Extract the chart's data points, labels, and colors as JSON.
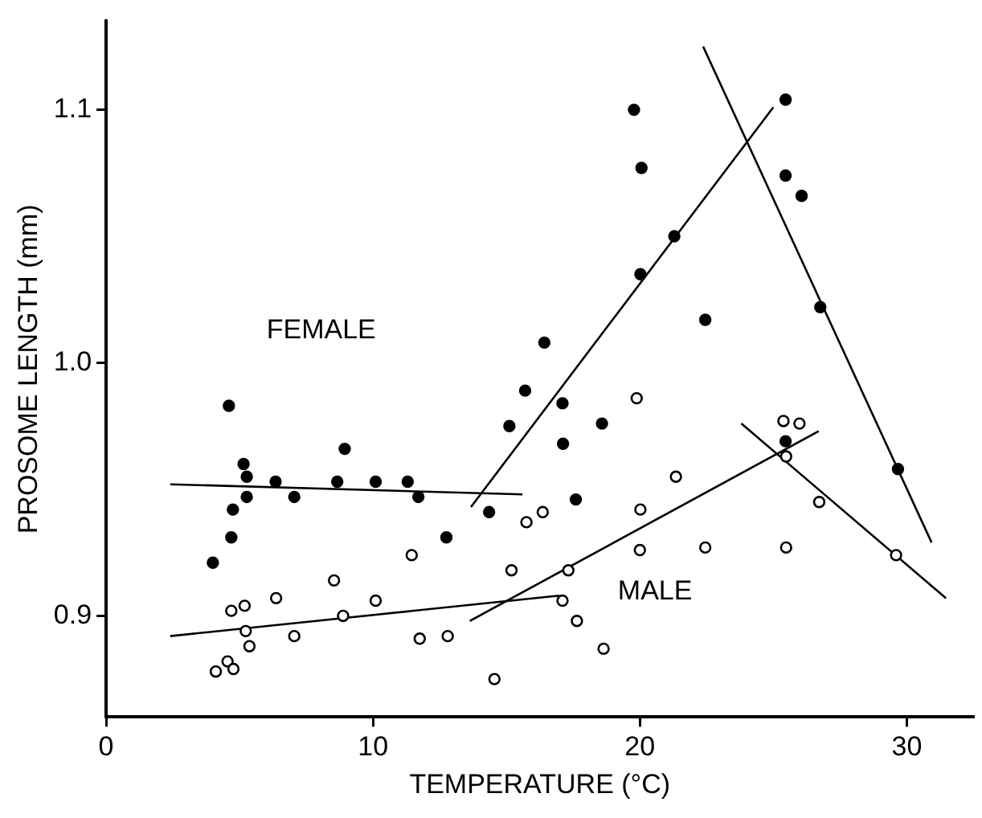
{
  "chart_data": {
    "type": "scatter",
    "xlabel": "TEMPERATURE (°C)",
    "ylabel": "PROSOME LENGTH (mm)",
    "xlim": [
      0,
      32.5
    ],
    "ylim": [
      0.86,
      1.135
    ],
    "xticks": [
      0,
      10,
      20,
      30
    ],
    "yticks": [
      0.9,
      {
        "value": 1.0,
        "label": "1.0"
      },
      1.1
    ],
    "grid": false,
    "legend": false,
    "marker": "circle",
    "series": [
      {
        "name": "FEMALE",
        "color": "#000000",
        "x": [
          4.6,
          5.15,
          5.27,
          4.75,
          5.27,
          4.69,
          4.0,
          6.35,
          7.05,
          8.94,
          8.66,
          10.1,
          11.3,
          11.7,
          12.75,
          19.78,
          20.06,
          21.29,
          20.02,
          22.45,
          16.42,
          15.7,
          17.1,
          15.11,
          18.58,
          17.12,
          17.6,
          14.35,
          25.46,
          25.46,
          26.06,
          26.76,
          29.67,
          25.46
        ],
        "values": [
          0.983,
          0.96,
          0.955,
          0.942,
          0.947,
          0.931,
          0.921,
          0.953,
          0.947,
          0.966,
          0.953,
          0.953,
          0.953,
          0.947,
          0.931,
          1.1,
          1.077,
          1.05,
          1.035,
          1.017,
          1.008,
          0.989,
          0.984,
          0.975,
          0.976,
          0.968,
          0.946,
          0.941,
          1.104,
          1.074,
          1.066,
          1.022,
          0.958,
          0.969
        ]
      },
      {
        "name": "MALE",
        "color": "#ffffff",
        "x": [
          11.45,
          8.54,
          4.69,
          5.19,
          6.37,
          8.88,
          10.1,
          5.23,
          5.37,
          7.05,
          11.75,
          12.8,
          4.11,
          4.55,
          4.77,
          19.88,
          21.35,
          16.36,
          15.75,
          20.02,
          20.0,
          22.45,
          15.19,
          17.32,
          17.1,
          17.64,
          18.64,
          14.55,
          25.38,
          25.98,
          25.48,
          26.72,
          25.48,
          29.6
        ],
        "values": [
          0.924,
          0.914,
          0.902,
          0.904,
          0.907,
          0.9,
          0.906,
          0.894,
          0.888,
          0.892,
          0.891,
          0.892,
          0.878,
          0.882,
          0.879,
          0.986,
          0.955,
          0.941,
          0.937,
          0.942,
          0.926,
          0.927,
          0.918,
          0.918,
          0.906,
          0.898,
          0.887,
          0.875,
          0.977,
          0.976,
          0.963,
          0.945,
          0.927,
          0.924
        ]
      },
      {
        "type": "line",
        "color": "#000000",
        "marker": "none",
        "x": [
          2.4,
          15.6
        ],
        "values": [
          0.952,
          0.948
        ]
      },
      {
        "type": "line",
        "color": "#000000",
        "marker": "none",
        "x": [
          13.67,
          25.0
        ],
        "values": [
          0.943,
          1.101
        ]
      },
      {
        "type": "line",
        "color": "#000000",
        "marker": "none",
        "x": [
          22.37,
          30.93
        ],
        "values": [
          1.125,
          0.929
        ]
      },
      {
        "type": "line",
        "color": "#000000",
        "marker": "none",
        "x": [
          2.4,
          16.98
        ],
        "values": [
          0.892,
          0.908
        ]
      },
      {
        "type": "line",
        "color": "#000000",
        "marker": "none",
        "x": [
          13.63,
          26.7
        ],
        "values": [
          0.898,
          0.973
        ]
      },
      {
        "type": "line",
        "color": "#000000",
        "marker": "none",
        "x": [
          23.8,
          31.47
        ],
        "values": [
          0.976,
          0.907
        ]
      }
    ]
  }
}
